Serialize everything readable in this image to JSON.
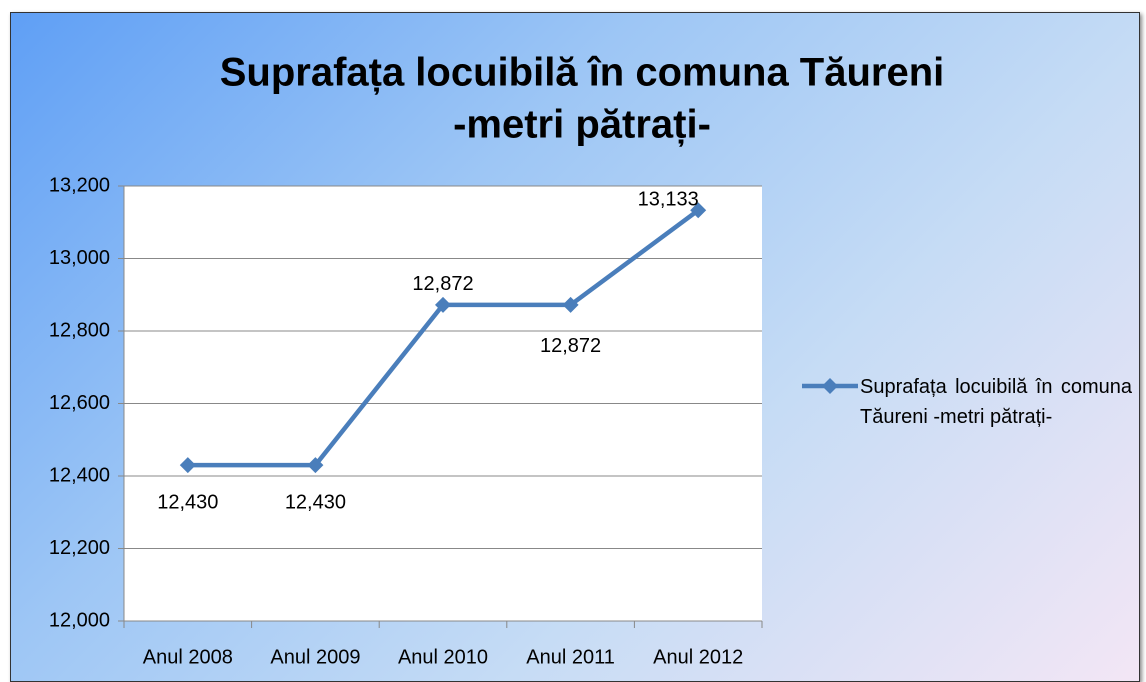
{
  "chart_data": {
    "type": "line",
    "title": [
      "Suprafața locuibilă în comuna Tăureni",
      "-metri pătrați-"
    ],
    "categories": [
      "Anul 2008",
      "Anul 2009",
      "Anul 2010",
      "Anul 2011",
      "Anul 2012"
    ],
    "series": [
      {
        "name": "Suprafața locuibilă în comuna Tăureni -metri pătrați-",
        "color": "#4a7ebb",
        "values": [
          12430,
          12430,
          12872,
          12872,
          13133
        ],
        "value_labels": [
          "12,430",
          "12,430",
          "12,872",
          "12,872",
          "13,133"
        ]
      }
    ],
    "ylim": [
      12000,
      13200
    ],
    "yticks": [
      {
        "value": 12000,
        "label": "12,000"
      },
      {
        "value": 12200,
        "label": "12,200"
      },
      {
        "value": 12400,
        "label": "12,400"
      },
      {
        "value": 12600,
        "label": "12,600"
      },
      {
        "value": 12800,
        "label": "12,800"
      },
      {
        "value": 13000,
        "label": "13,000"
      },
      {
        "value": 13200,
        "label": "13,200"
      }
    ],
    "grid": true,
    "legend": "right"
  }
}
